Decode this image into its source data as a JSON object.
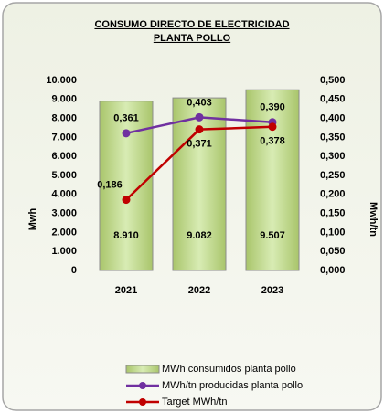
{
  "chart_data": {
    "type": "bar_line",
    "title": [
      "CONSUMO DIRECTO DE ELECTRICIDAD",
      "PLANTA POLLO"
    ],
    "ylabel": "Mwh",
    "y2label": "Mwh/tn",
    "categories": [
      "2021",
      "2022",
      "2023"
    ],
    "series": [
      {
        "name": "MWh consumidos planta pollo",
        "type": "bar",
        "color": "#c6e09a",
        "values": [
          8910,
          9082,
          9507
        ],
        "value_labels": [
          "8.910",
          "9.082",
          "9.507"
        ]
      },
      {
        "name": "MWh/tn producidas planta pollo",
        "type": "line",
        "axis": "y2",
        "color": "#7030a0",
        "values": [
          0.361,
          0.403,
          0.39
        ],
        "value_labels": [
          "0,361",
          "0,403",
          "0,390"
        ]
      },
      {
        "name": "Target MWh/tn",
        "type": "line",
        "axis": "y2",
        "color": "#c00000",
        "values": [
          0.186,
          0.371,
          0.378
        ],
        "value_labels": [
          "0,186",
          "0,371",
          "0,378"
        ]
      }
    ],
    "ylim": [
      0,
      10000
    ],
    "yticks": [
      0,
      {
        "value": 1000,
        "label": "1.000"
      },
      {
        "value": 2000,
        "label": "2.000"
      },
      {
        "value": 3000,
        "label": "3.000"
      },
      {
        "value": 4000,
        "label": "4.000"
      },
      {
        "value": 5000,
        "label": "5.000"
      },
      {
        "value": 6000,
        "label": "6.000"
      },
      {
        "value": 7000,
        "label": "7.000"
      },
      {
        "value": 8000,
        "label": "8.000"
      },
      {
        "value": 9000,
        "label": "9.000"
      },
      {
        "value": 10000,
        "label": "10.000"
      }
    ],
    "y2lim": [
      0,
      0.5
    ],
    "y2ticks": [
      {
        "value": 0,
        "label": "0,000"
      },
      {
        "value": 0.05,
        "label": "0,050"
      },
      {
        "value": 0.1,
        "label": "0,100"
      },
      {
        "value": 0.15,
        "label": "0,150"
      },
      {
        "value": 0.2,
        "label": "0,200"
      },
      {
        "value": 0.25,
        "label": "0,250"
      },
      {
        "value": 0.3,
        "label": "0,300"
      },
      {
        "value": 0.35,
        "label": "0,350"
      },
      {
        "value": 0.4,
        "label": "0,400"
      },
      {
        "value": 0.45,
        "label": "0,450"
      },
      {
        "value": 0.5,
        "label": "0,500"
      }
    ]
  }
}
